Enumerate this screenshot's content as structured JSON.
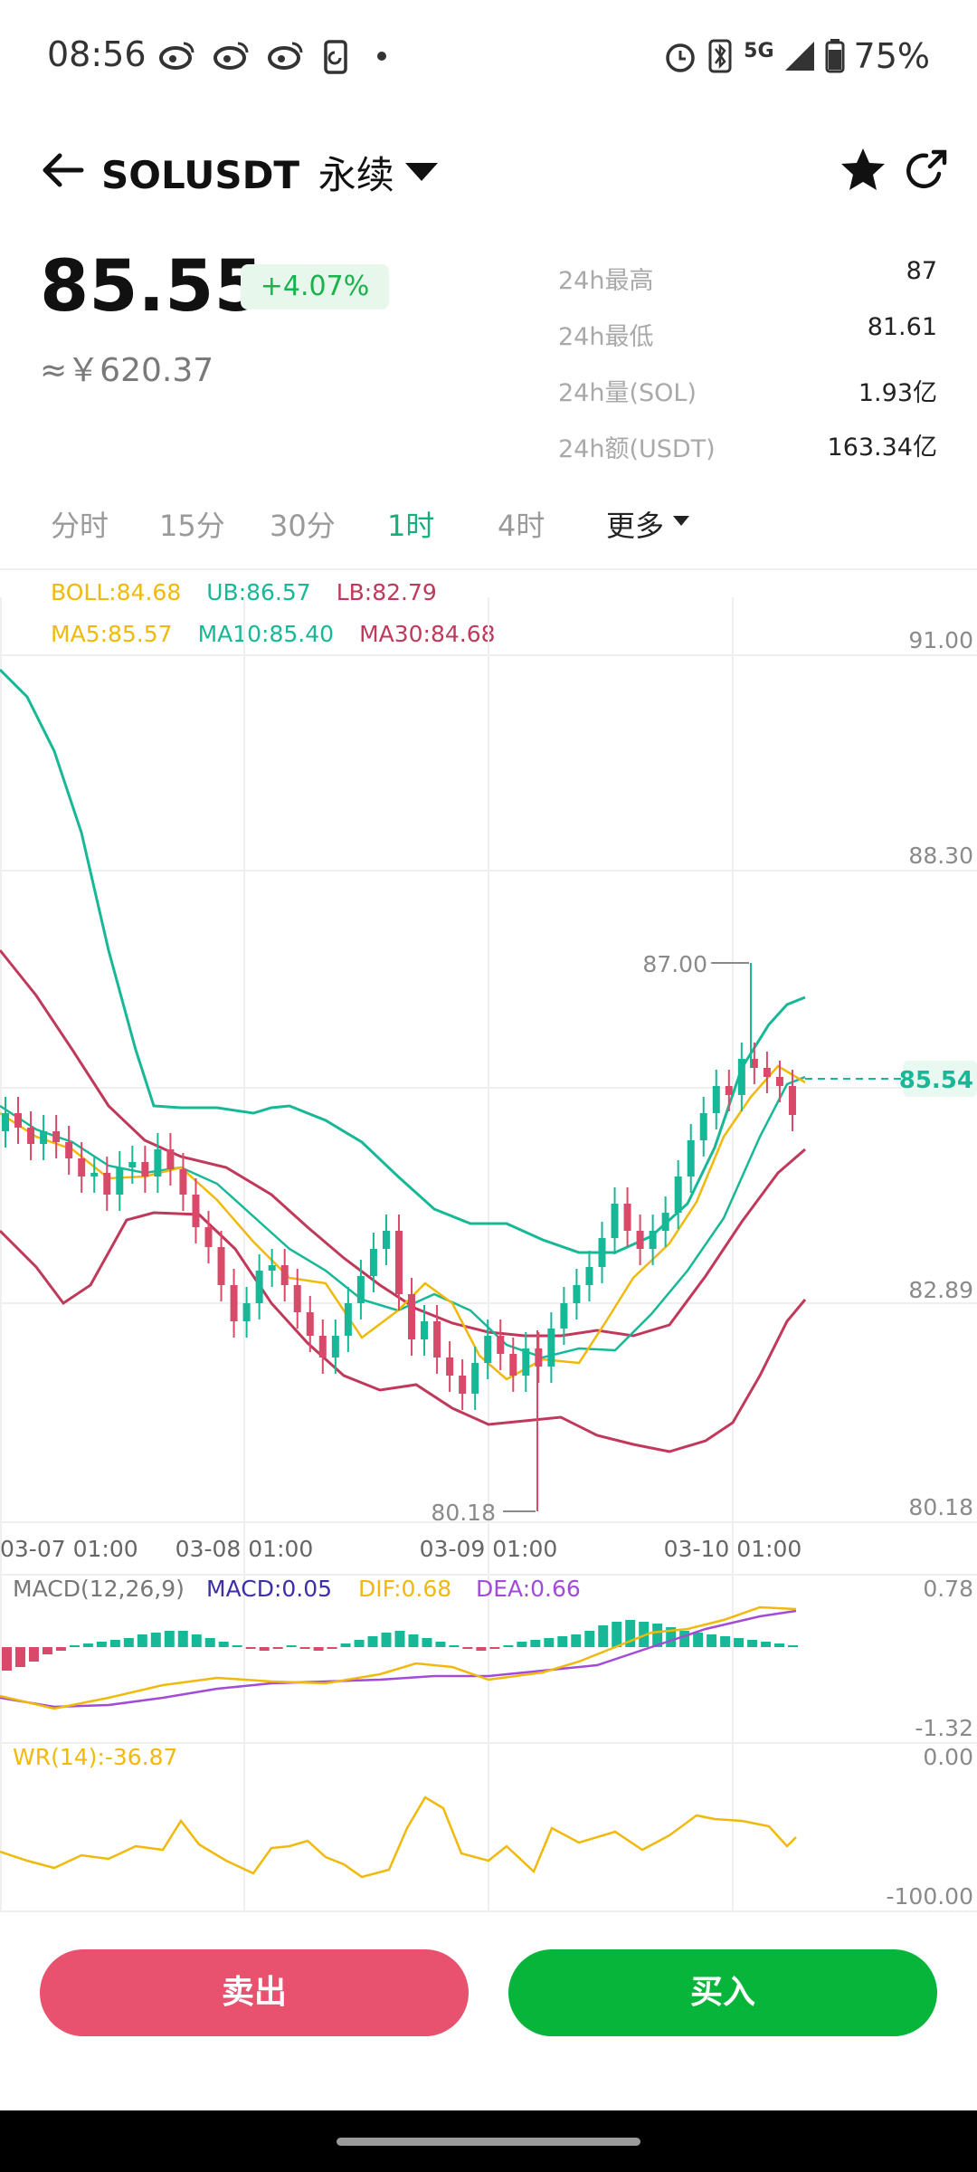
{
  "status_bar": {
    "time": "08:56",
    "network": "5G",
    "battery": "75%",
    "left_icons": [
      "weibo-icon",
      "weibo-icon",
      "weibo-icon",
      "phone-sync-icon",
      "dot-icon"
    ],
    "right_icons": [
      "alarm-icon",
      "bluetooth-icon",
      "signal-icon",
      "battery-icon"
    ]
  },
  "header": {
    "symbol": "SOLUSDT",
    "contract_type": "永续"
  },
  "price_panel": {
    "last_price": "85.55",
    "change_pct": "+4.07%",
    "cny_price": "≈￥620.37",
    "stats": [
      {
        "label": "24h最高",
        "value": "87"
      },
      {
        "label": "24h最低",
        "value": "81.61"
      },
      {
        "label": "24h量(SOL)",
        "value": "1.93亿"
      },
      {
        "label": "24h额(USDT)",
        "value": "163.34亿"
      }
    ]
  },
  "tabs": [
    {
      "label": "分时",
      "active": false
    },
    {
      "label": "15分",
      "active": false
    },
    {
      "label": "30分",
      "active": false
    },
    {
      "label": "1时",
      "active": true
    },
    {
      "label": "4时",
      "active": false
    },
    {
      "label": "更多",
      "active": false
    }
  ],
  "indicators": {
    "boll": {
      "label": "BOLL:84.68",
      "ub": "UB:86.57",
      "lb": "LB:82.79"
    },
    "ma": {
      "ma5": "MA5:85.57",
      "ma10": "MA10:85.40",
      "ma30": "MA30:84.68"
    },
    "macd": {
      "label": "MACD(12,26,9)",
      "macd": "MACD:0.05",
      "dif": "DIF:0.68",
      "dea": "DEA:0.66",
      "axis_top": "0.78",
      "axis_bottom": "-1.32"
    },
    "wr": {
      "label": "WR(14):-36.87",
      "axis_top": "0.00",
      "axis_bottom": "-100.00"
    }
  },
  "colors": {
    "up": "#17b897",
    "down": "#d94a6a",
    "boll": "#f0b90b",
    "ub": "#17b897",
    "lb": "#c0395a",
    "ma5": "#f0b90b",
    "ma10": "#17b897",
    "ma30": "#c0395a",
    "macd": "#3d2fa8",
    "dif": "#f0b90b",
    "dea": "#a24bd8",
    "wr": "#f0b90b",
    "sell": "#e8526f",
    "buy": "#07b53b"
  },
  "chart_data": {
    "type": "candlestick",
    "price_axis_labels": [
      "91.00",
      "88.30",
      "82.89",
      "80.18"
    ],
    "time_axis_labels": [
      "03-07 01:00",
      "03-08 01:00",
      "03-09 01:00",
      "03-10 01:00"
    ],
    "high_marker": "87.00",
    "low_marker": "80.18",
    "last_price_tag": "85.54",
    "ylim": [
      80.18,
      91.0
    ]
  },
  "actions": {
    "sell_label": "卖出",
    "buy_label": "买入"
  }
}
